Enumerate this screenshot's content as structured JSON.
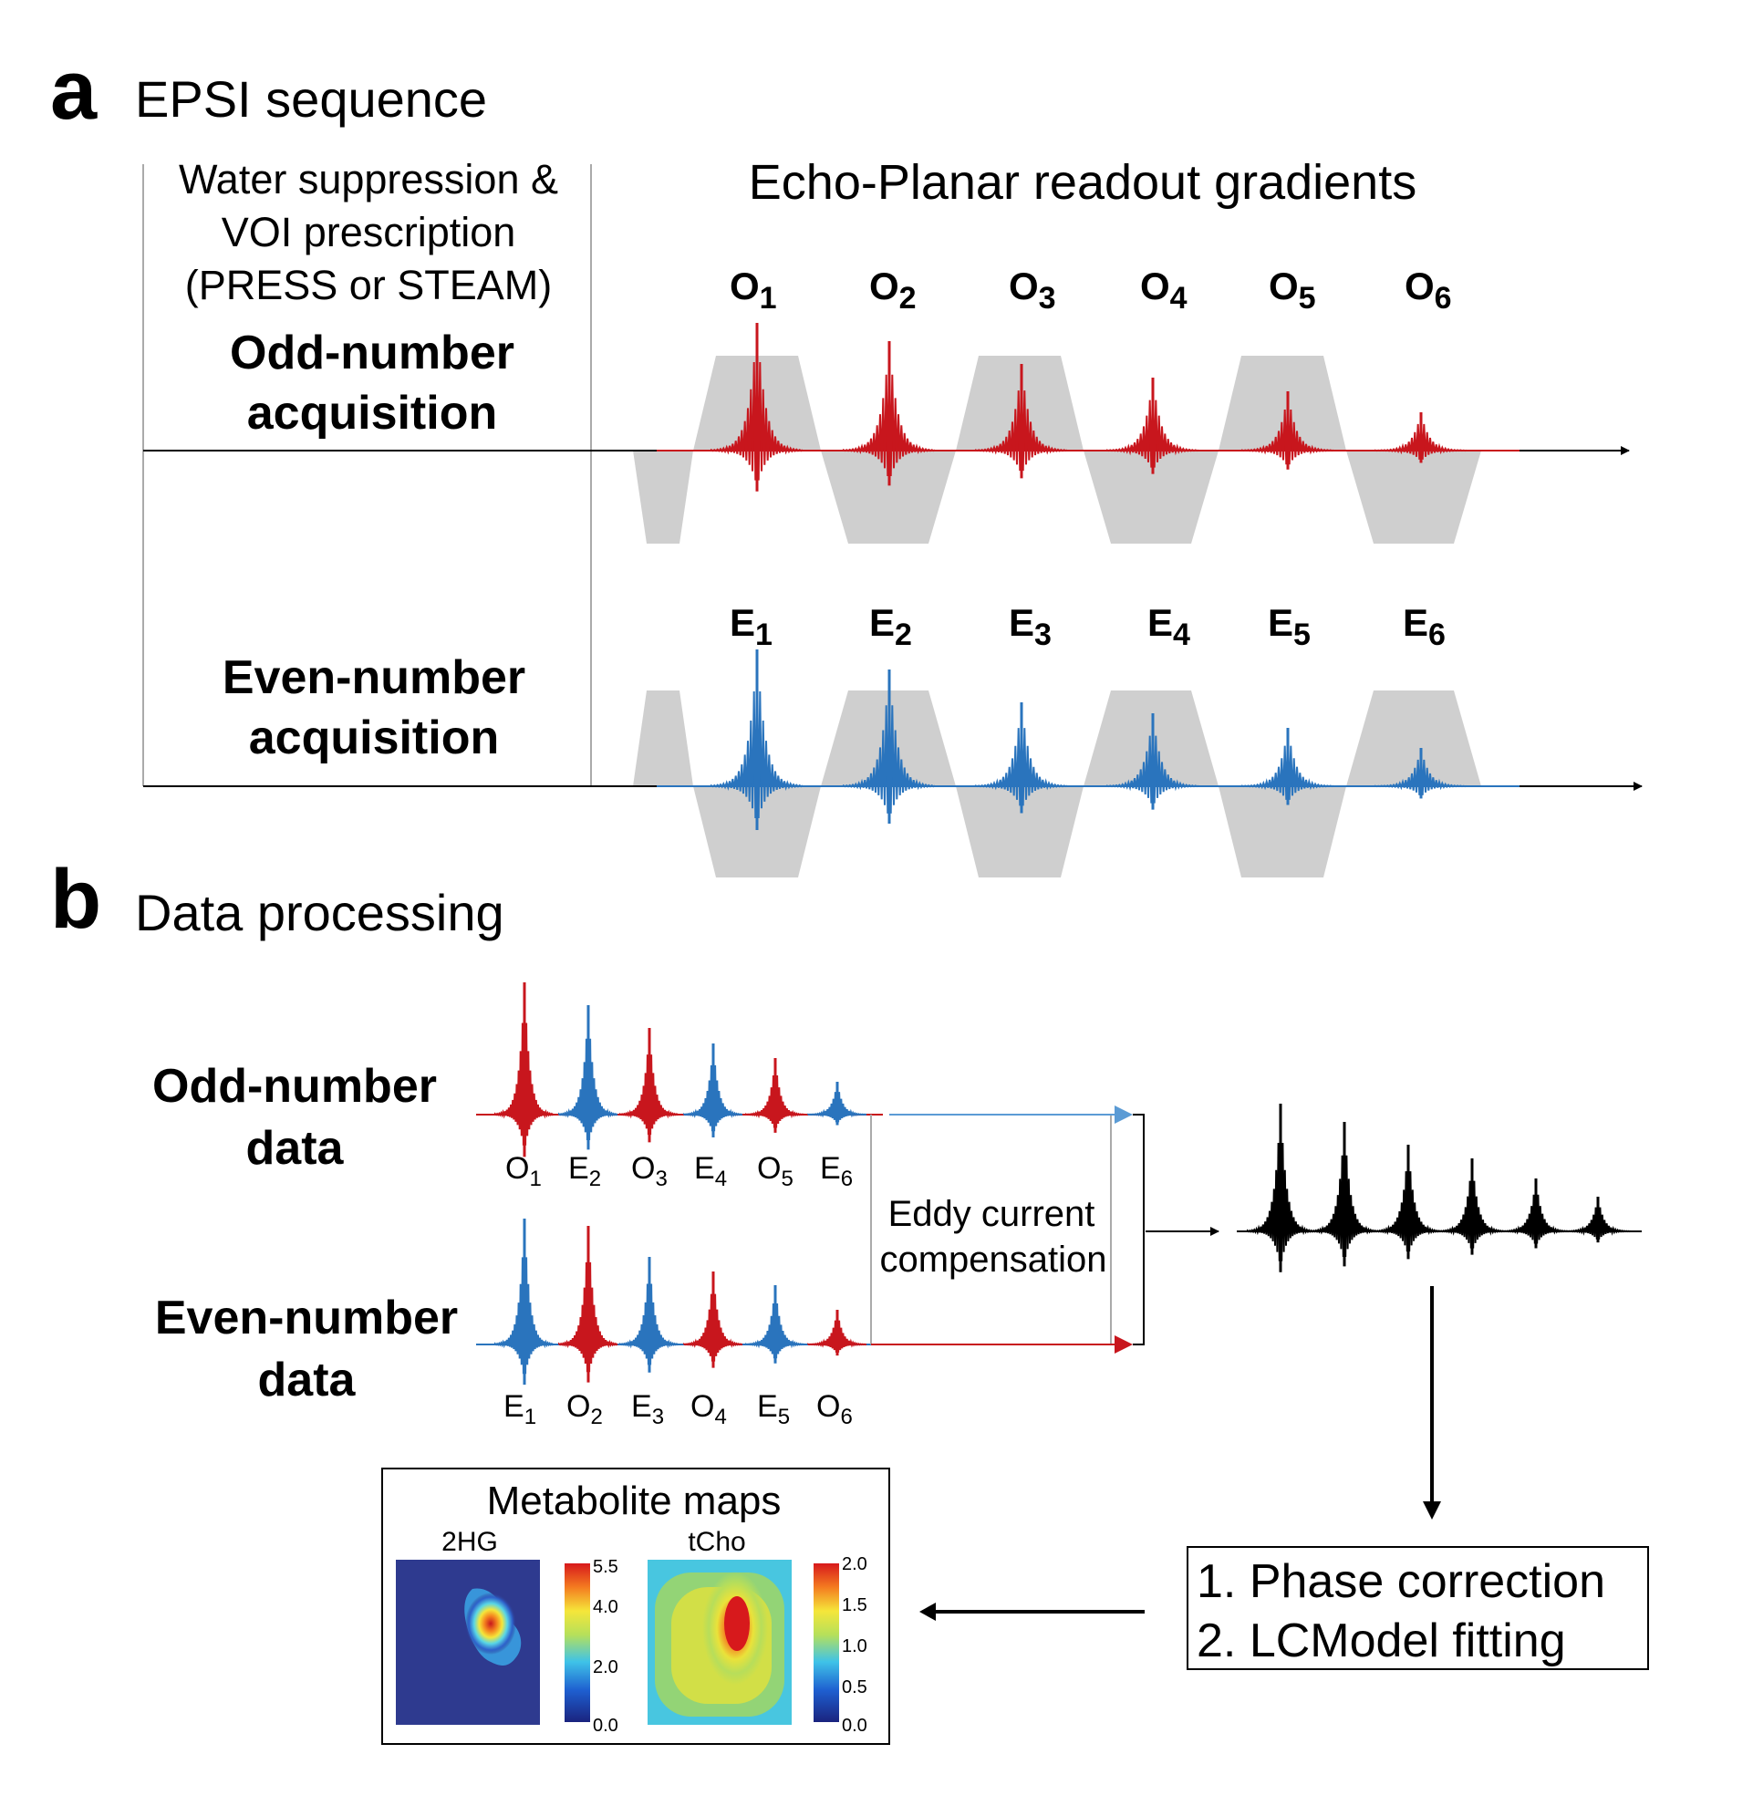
{
  "panel_a": {
    "letter": "a",
    "title": "EPSI sequence",
    "left_label": [
      "Water suppression &",
      "VOI prescription",
      "(PRESS or STEAM)"
    ],
    "readout_title": "Echo-Planar  readout gradients",
    "odd_label": [
      "Odd-number",
      "acquisition"
    ],
    "even_label": [
      "Even-number",
      "acquisition"
    ],
    "odd_echoes": [
      "O",
      "O",
      "O",
      "O",
      "O",
      "O"
    ],
    "even_echoes": [
      "E",
      "E",
      "E",
      "E",
      "E",
      "E"
    ],
    "echo_subscripts": [
      "1",
      "2",
      "3",
      "4",
      "5",
      "6"
    ]
  },
  "panel_b": {
    "letter": "b",
    "title": "Data processing",
    "odd_data_label": [
      "Odd-number",
      "data"
    ],
    "even_data_label": [
      "Even-number",
      "data"
    ],
    "odd_data_letters": [
      "O",
      "E",
      "O",
      "E",
      "O",
      "E"
    ],
    "even_data_letters": [
      "E",
      "O",
      "E",
      "O",
      "E",
      "O"
    ],
    "data_subscripts": [
      "1",
      "2",
      "3",
      "4",
      "5",
      "6"
    ],
    "eddy_label": [
      "Eddy current",
      "compensation"
    ],
    "steps": [
      "1. Phase correction",
      "2. LCModel fitting"
    ],
    "maps_title": "Metabolite  maps",
    "map1": {
      "name": "2HG",
      "ticks": [
        "5.5",
        "4.0",
        "2.0",
        "0.0"
      ]
    },
    "map2": {
      "name": "tCho",
      "ticks": [
        "2.0",
        "1.5",
        "1.0",
        "0.5",
        "0.0"
      ]
    }
  },
  "colors": {
    "odd": "#c8161d",
    "even": "#2a74bd",
    "gradient": "#cfcfcf",
    "combined": "#000000"
  }
}
